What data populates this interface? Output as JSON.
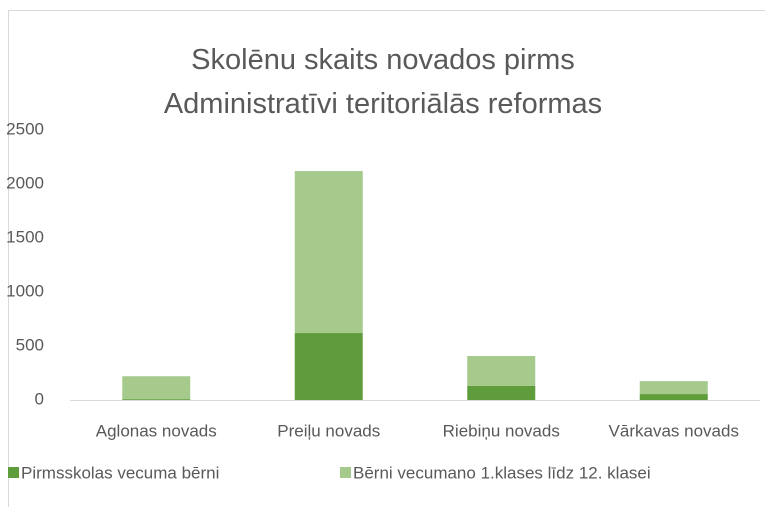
{
  "chart_data": {
    "type": "stacked_bar",
    "title": "Skolēnu skaits novados pirms Administratīvi teritoriālās reformas",
    "categories": [
      "Aglonas novads",
      "Preiļu novads",
      "Riebiņu novads",
      "Vārkavas novads"
    ],
    "series": [
      {
        "name": "Pirmsskolas vecuma bērni",
        "color": "#5f9c3c",
        "values": [
          8,
          620,
          130,
          55
        ]
      },
      {
        "name": "Bērni vecumano 1.klases līdz 12. klasei",
        "color": "#a5ca8c",
        "values": [
          212,
          1500,
          277,
          120
        ]
      }
    ],
    "ylim": [
      0,
      2500
    ],
    "yticks": [
      0,
      500,
      1000,
      1500,
      2000,
      2500
    ],
    "legend": "bottom"
  }
}
